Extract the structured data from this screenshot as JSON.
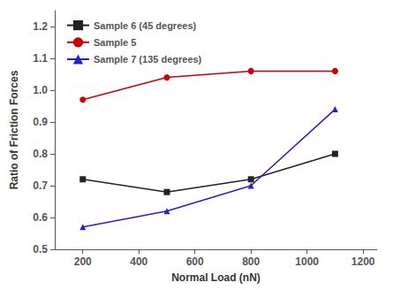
{
  "chart_data": {
    "type": "line",
    "xlabel": "Normal Load (nN)",
    "ylabel": "Ratio of Friction Forces",
    "x": [
      200,
      500,
      800,
      1100
    ],
    "series": [
      {
        "name": "Sample 6 (45 degrees)",
        "color": "#222222",
        "marker": "square",
        "values": [
          0.72,
          0.68,
          0.72,
          0.8
        ]
      },
      {
        "name": "Sample 5",
        "color": "#cc0000",
        "marker": "circle",
        "values": [
          0.97,
          1.04,
          1.06,
          1.06
        ]
      },
      {
        "name": "Sample 7 (135 degrees)",
        "color": "#2222cc",
        "marker": "triangle",
        "values": [
          0.57,
          0.62,
          0.7,
          0.94
        ]
      }
    ],
    "xlim": [
      100,
      1250
    ],
    "ylim": [
      0.5,
      1.25
    ],
    "xticks": [
      200,
      400,
      600,
      800,
      1000,
      1200
    ],
    "yticks": [
      0.5,
      0.6,
      0.7,
      0.8,
      0.9,
      {
        "value": 1,
        "label": "1.0"
      },
      1.1,
      1.2
    ],
    "grid": false,
    "legend": "upper left"
  }
}
